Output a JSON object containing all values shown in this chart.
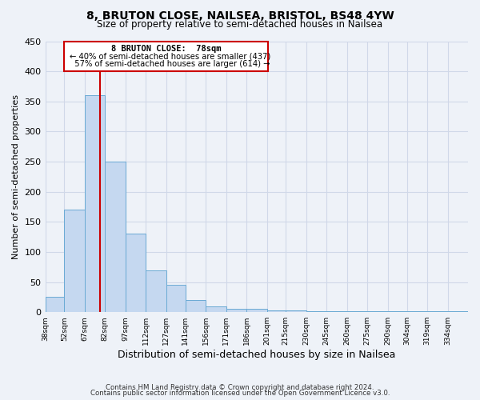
{
  "title": "8, BRUTON CLOSE, NAILSEA, BRISTOL, BS48 4YW",
  "subtitle": "Size of property relative to semi-detached houses in Nailsea",
  "xlabel": "Distribution of semi-detached houses by size in Nailsea",
  "ylabel": "Number of semi-detached properties",
  "bin_labels": [
    "38sqm",
    "52sqm",
    "67sqm",
    "82sqm",
    "97sqm",
    "112sqm",
    "127sqm",
    "141sqm",
    "156sqm",
    "171sqm",
    "186sqm",
    "201sqm",
    "215sqm",
    "230sqm",
    "245sqm",
    "260sqm",
    "275sqm",
    "290sqm",
    "304sqm",
    "319sqm",
    "334sqm"
  ],
  "bin_edges": [
    38,
    52,
    67,
    82,
    97,
    112,
    127,
    141,
    156,
    171,
    186,
    201,
    215,
    230,
    245,
    260,
    275,
    290,
    304,
    319,
    334,
    349
  ],
  "bar_heights": [
    25,
    170,
    360,
    250,
    130,
    70,
    45,
    20,
    10,
    5,
    5,
    3,
    3,
    2,
    2,
    1,
    1,
    1,
    1,
    1,
    1
  ],
  "bar_color": "#c5d8f0",
  "bar_edge_color": "#6aaad4",
  "grid_color": "#d0d8e8",
  "background_color": "#eef2f8",
  "property_value": 78,
  "property_line_color": "#cc0000",
  "annotation_title": "8 BRUTON CLOSE:  78sqm",
  "annotation_smaller_pct": 40,
  "annotation_smaller_count": 437,
  "annotation_larger_pct": 57,
  "annotation_larger_count": 614,
  "ylim": [
    0,
    450
  ],
  "yticks": [
    0,
    50,
    100,
    150,
    200,
    250,
    300,
    350,
    400,
    450
  ],
  "footer_line1": "Contains HM Land Registry data © Crown copyright and database right 2024.",
  "footer_line2": "Contains public sector information licensed under the Open Government Licence v3.0."
}
